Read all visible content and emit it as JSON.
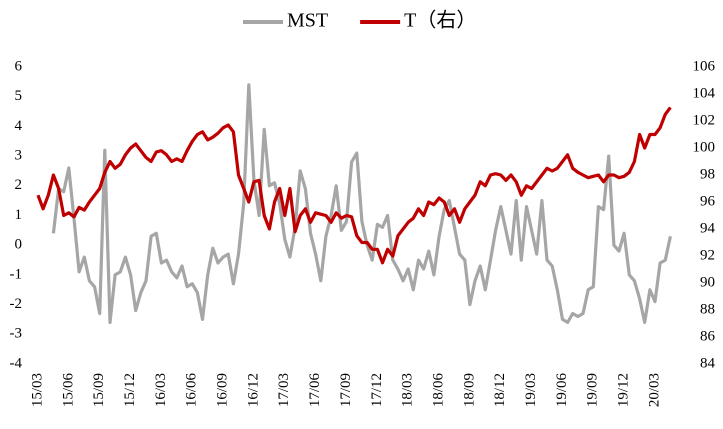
{
  "chart_data": {
    "type": "line",
    "categories": [
      "15/03",
      null,
      null,
      null,
      null,
      null,
      "15/06",
      null,
      null,
      null,
      null,
      null,
      "15/09",
      null,
      null,
      null,
      null,
      null,
      "15/12",
      null,
      null,
      null,
      null,
      null,
      "16/03",
      null,
      null,
      null,
      null,
      null,
      "16/06",
      null,
      null,
      null,
      null,
      null,
      "16/09",
      null,
      null,
      null,
      null,
      null,
      "16/12",
      null,
      null,
      null,
      null,
      null,
      "17/03",
      null,
      null,
      null,
      null,
      null,
      "17/06",
      null,
      null,
      null,
      null,
      null,
      "17/09",
      null,
      null,
      null,
      null,
      null,
      "17/12",
      null,
      null,
      null,
      null,
      null,
      "18/03",
      null,
      null,
      null,
      null,
      null,
      "18/06",
      null,
      null,
      null,
      null,
      null,
      "18/09",
      null,
      null,
      null,
      null,
      null,
      "18/12",
      null,
      null,
      null,
      null,
      null,
      "19/03",
      null,
      null,
      null,
      null,
      null,
      "19/06",
      null,
      null,
      null,
      null,
      null,
      "19/09",
      null,
      null,
      null,
      null,
      null,
      "19/12",
      null,
      null,
      null,
      null,
      null,
      "20/03",
      null,
      null,
      null
    ],
    "series": [
      {
        "name": "MST",
        "color": "#a6a6a6",
        "values": [
          null,
          null,
          null,
          0.4,
          1.9,
          1.8,
          2.6,
          0.9,
          -0.9,
          -0.4,
          -1.2,
          -1.4,
          -2.3,
          3.2,
          -2.6,
          -1.0,
          -0.9,
          -0.4,
          -1.0,
          -2.2,
          -1.6,
          -1.2,
          0.3,
          0.4,
          -0.6,
          -0.5,
          -0.9,
          -1.1,
          -0.7,
          -1.4,
          -1.3,
          -1.6,
          -2.5,
          -1.0,
          -0.1,
          -0.6,
          -0.4,
          -0.3,
          -1.3,
          -0.3,
          1.4,
          5.4,
          2.2,
          1.0,
          3.9,
          2.0,
          2.1,
          1.4,
          0.2,
          -0.4,
          0.6,
          2.5,
          1.9,
          0.4,
          -0.3,
          -1.2,
          0.3,
          1.0,
          2.0,
          0.5,
          0.8,
          2.8,
          3.1,
          0.8,
          0.0,
          -0.5,
          0.7,
          0.6,
          1.0,
          -0.5,
          -0.8,
          -1.2,
          -0.8,
          -1.5,
          -0.5,
          -0.8,
          -0.2,
          -1.0,
          0.3,
          1.2,
          1.5,
          0.6,
          -0.3,
          -0.5,
          -2.0,
          -1.2,
          -0.7,
          -1.5,
          -0.5,
          0.5,
          1.3,
          0.5,
          -0.3,
          1.5,
          -0.5,
          1.3,
          0.5,
          -0.3,
          1.5,
          -0.5,
          -0.7,
          -1.5,
          -2.5,
          -2.6,
          -2.3,
          -2.4,
          -2.3,
          -1.5,
          -1.4,
          1.3,
          1.2,
          3.0,
          0.0,
          -0.2,
          0.4,
          -1.0,
          -1.2,
          -1.8,
          -2.6,
          -1.5,
          -1.9,
          -0.6,
          -0.5,
          0.3
        ]
      },
      {
        "name": "T（右）",
        "color": "#c00000",
        "axis": "y2",
        "values": [
          96.5,
          95.5,
          96.5,
          98,
          97,
          95,
          95.2,
          94.9,
          95.6,
          95.4,
          96,
          96.5,
          97,
          98.2,
          99,
          98.5,
          98.8,
          99.5,
          100,
          100.3,
          99.8,
          99.3,
          99,
          99.7,
          99.8,
          99.5,
          99,
          99.2,
          99,
          99.8,
          100.5,
          101,
          101.2,
          100.6,
          100.8,
          101.1,
          101.5,
          101.7,
          101.2,
          98,
          97,
          96,
          97.5,
          97.6,
          95,
          94,
          96,
          97,
          95,
          97,
          93.8,
          95,
          95.5,
          94.5,
          95.2,
          95.1,
          95,
          94.5,
          95.2,
          94.8,
          95,
          94.9,
          93.5,
          93,
          93,
          92.5,
          92.5,
          91.5,
          92.5,
          92,
          93.5,
          94,
          94.5,
          94.8,
          95.5,
          95,
          96,
          95.8,
          96.3,
          96,
          95,
          95.5,
          94.5,
          95.5,
          96,
          96.5,
          97.5,
          97.2,
          98,
          98.1,
          98,
          97.6,
          98,
          97.5,
          96.5,
          97.2,
          97,
          97.5,
          98,
          98.5,
          98.3,
          98.5,
          99,
          99.5,
          98.5,
          98.2,
          98,
          97.8,
          97.9,
          98,
          97.5,
          98,
          98,
          97.8,
          97.9,
          98.2,
          99,
          101,
          100,
          101,
          101,
          101.5,
          102.5,
          103
        ]
      }
    ],
    "ylim": [
      -4,
      6
    ],
    "yticks": [
      -4,
      -3,
      -2,
      -1,
      0,
      1,
      2,
      3,
      4,
      5,
      6
    ],
    "y2lim": [
      84,
      106
    ],
    "y2ticks": [
      84,
      86,
      88,
      90,
      92,
      94,
      96,
      98,
      100,
      102,
      104,
      106
    ],
    "grid": false,
    "legend": "top"
  }
}
